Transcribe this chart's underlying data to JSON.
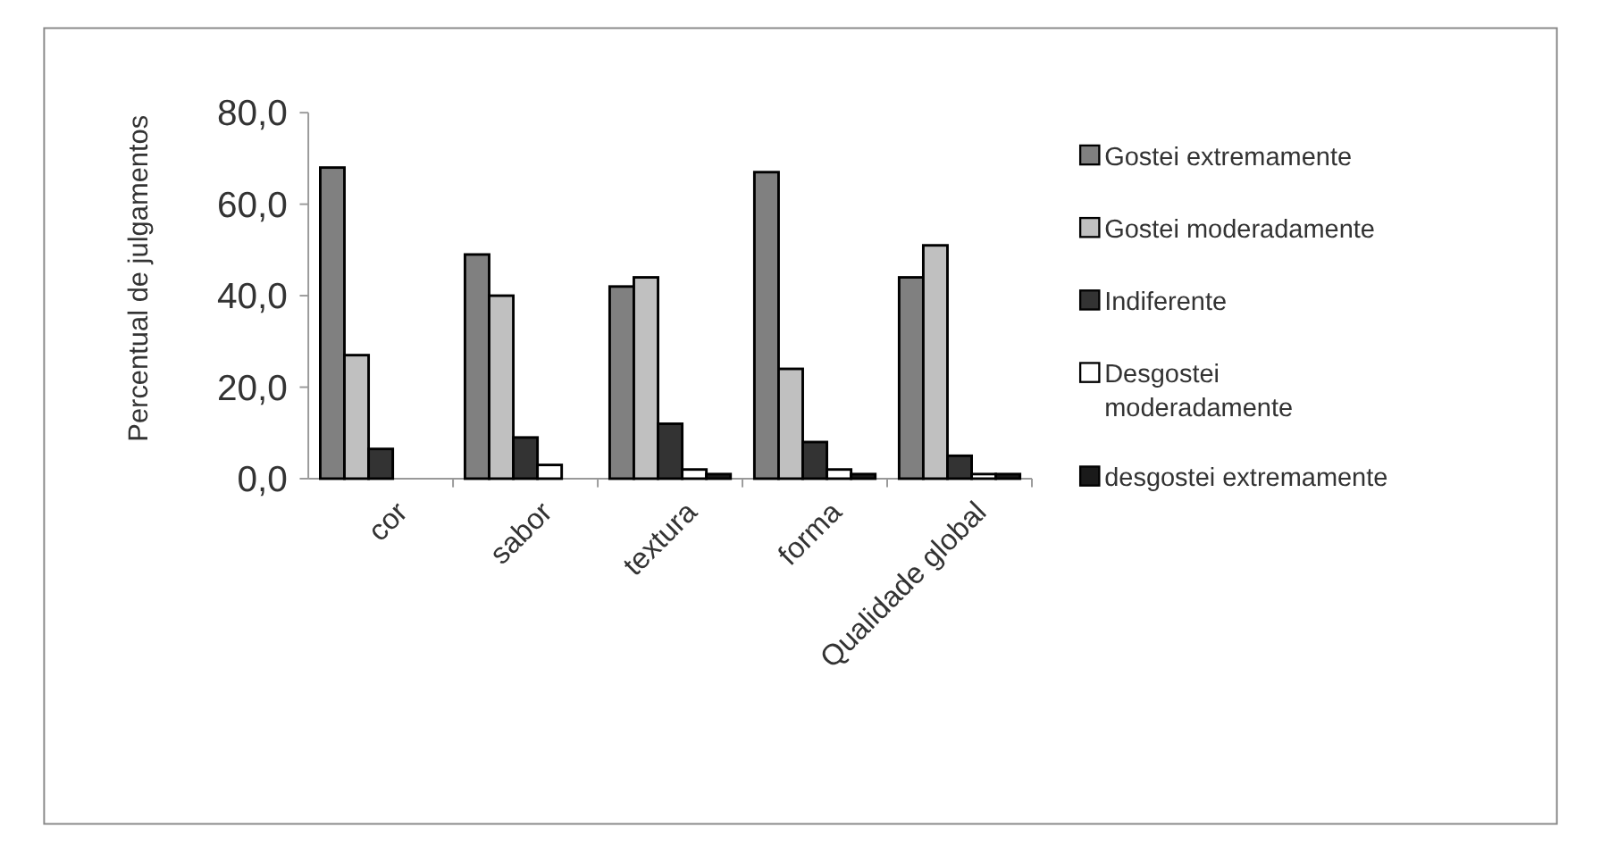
{
  "chart_data": {
    "type": "bar",
    "ylabel": "Percentual de julgamentos",
    "categories": [
      "cor",
      "sabor",
      "textura",
      "forma",
      "Qualidade global"
    ],
    "series": [
      {
        "name": "Gostei extremamente",
        "color": "#808080",
        "values": [
          68,
          49,
          42,
          67,
          44
        ]
      },
      {
        "name": "Gostei moderadamente",
        "color": "#c0c0c0",
        "values": [
          27,
          40,
          44,
          24,
          51
        ]
      },
      {
        "name": "Indiferente",
        "color": "#333333",
        "values": [
          6.5,
          9,
          12,
          8,
          5
        ]
      },
      {
        "name": "Desgostei moderadamente",
        "color": "#ffffff",
        "values": [
          0,
          3,
          2,
          2,
          1
        ]
      },
      {
        "name": "desgostei extremamente",
        "color": "#1a1a1a",
        "values": [
          0,
          0,
          1,
          1,
          1
        ]
      }
    ],
    "ylim": [
      0,
      80
    ],
    "yticks": [
      {
        "value": 0,
        "label": "0,0"
      },
      {
        "value": 20,
        "label": "20,0"
      },
      {
        "value": 40,
        "label": "40,0"
      },
      {
        "value": 60,
        "label": "60,0"
      },
      {
        "value": 80,
        "label": "80,0"
      }
    ],
    "grid": false,
    "legend": "right"
  }
}
